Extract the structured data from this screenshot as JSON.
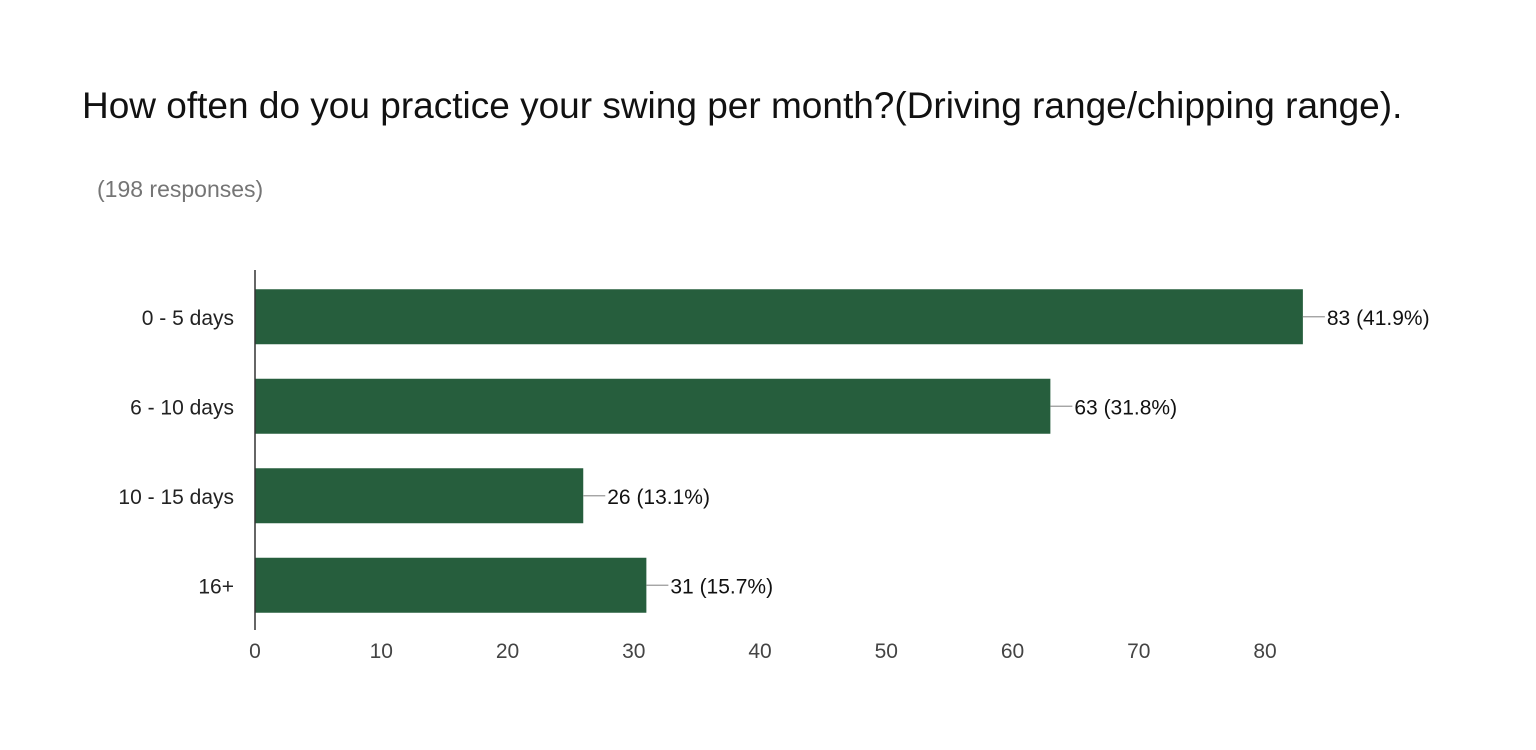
{
  "question": {
    "title": "How often do you practice your swing per month?(Driving range/chipping range).",
    "response_count": "(198 responses)"
  },
  "colors": {
    "bar": "#265e3d",
    "title": "#111111",
    "subtitle": "#757575",
    "axis": "#333333",
    "tick_label": "#444444",
    "leader_line": "#999999"
  },
  "chart_data": {
    "type": "bar",
    "orientation": "horizontal",
    "title": "How often do you practice your swing per month?(Driving range/chipping range).",
    "subtitle": "(198 responses)",
    "categories": [
      "0 - 5 days",
      "6 - 10 days",
      "10 - 15 days",
      "16+"
    ],
    "values": [
      83,
      63,
      26,
      31
    ],
    "data_labels": [
      "83 (41.9%)",
      "63 (31.8%)",
      "26 (13.1%)",
      "31 (15.7%)"
    ],
    "xlim": [
      0,
      83
    ],
    "xticks": [
      0,
      10,
      20,
      30,
      40,
      50,
      60,
      70,
      80
    ],
    "grid": false,
    "legend": "none"
  }
}
